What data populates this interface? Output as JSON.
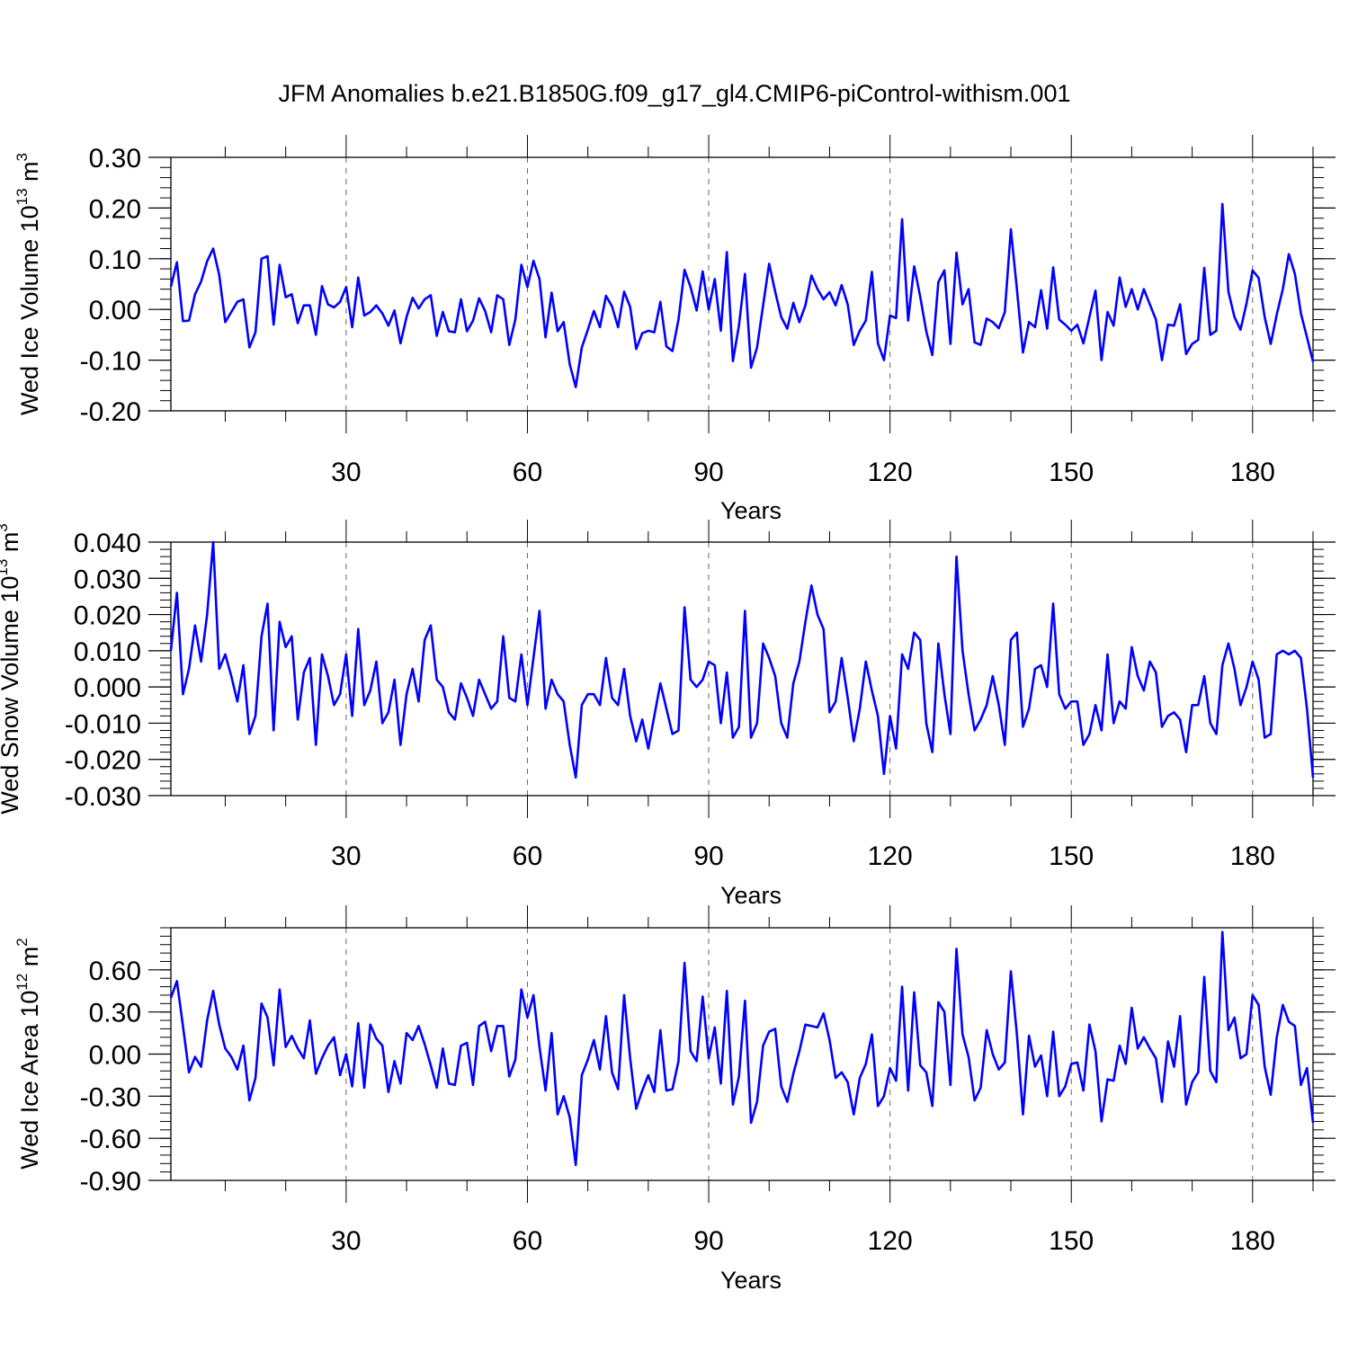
{
  "title": "JFM Anomalies b.e21.B1850G.f09_g17_gl4.CMIP6-piControl-withism.001",
  "colors": {
    "line": "#0000ff",
    "axis": "#000000",
    "grid": "#666666"
  },
  "chart_data": [
    {
      "type": "line",
      "xlabel": "Years",
      "ylabel": {
        "text": "Wed Ice Volume 10",
        "exp": "13",
        "unit": " m",
        "unit_exp": "3"
      },
      "xlim": [
        1,
        190
      ],
      "ylim": [
        -0.2,
        0.3
      ],
      "xticks": [
        30,
        60,
        90,
        120,
        150,
        180
      ],
      "xtick_labels": [
        "30",
        "60",
        "90",
        "120",
        "150",
        "180"
      ],
      "yticks": [
        -0.2,
        -0.1,
        0.0,
        0.1,
        0.2,
        0.3
      ],
      "ytick_labels": [
        "-0.20",
        "-0.10",
        "0.00",
        "0.10",
        "0.20",
        "0.30"
      ],
      "grid": "vertical dashed at major x ticks",
      "series": [
        {
          "x_start": 1,
          "values": [
            0.045,
            0.093,
            -0.023,
            -0.022,
            0.03,
            0.055,
            0.095,
            0.12,
            0.068,
            -0.025,
            -0.005,
            0.015,
            0.02,
            -0.075,
            -0.045,
            0.1,
            0.105,
            -0.03,
            0.088,
            0.024,
            0.03,
            -0.027,
            0.008,
            0.008,
            -0.05,
            0.046,
            0.01,
            0.004,
            0.015,
            0.044,
            -0.035,
            0.063,
            -0.012,
            -0.005,
            0.008,
            -0.008,
            -0.032,
            -0.002,
            -0.067,
            -0.015,
            0.023,
            0.002,
            0.02,
            0.028,
            -0.052,
            -0.005,
            -0.043,
            -0.045,
            0.02,
            -0.043,
            -0.022,
            0.022,
            -0.003,
            -0.045,
            0.028,
            0.02,
            -0.07,
            -0.02,
            0.088,
            0.044,
            0.096,
            0.06,
            -0.055,
            0.033,
            -0.043,
            -0.025,
            -0.108,
            -0.153,
            -0.075,
            -0.04,
            -0.003,
            -0.035,
            0.027,
            0.006,
            -0.035,
            0.035,
            0.005,
            -0.078,
            -0.047,
            -0.042,
            -0.045,
            0.015,
            -0.073,
            -0.082,
            -0.02,
            0.078,
            0.044,
            -0.002,
            0.075,
            0.0,
            0.06,
            -0.042,
            0.113,
            -0.102,
            -0.032,
            0.07,
            -0.115,
            -0.075,
            0.008,
            0.09,
            0.035,
            -0.015,
            -0.038,
            0.013,
            -0.025,
            0.008,
            0.067,
            0.04,
            0.02,
            0.034,
            0.008,
            0.048,
            0.01,
            -0.07,
            -0.042,
            -0.022,
            0.074,
            -0.067,
            -0.1,
            -0.012,
            -0.017,
            0.178,
            -0.022,
            0.085,
            0.025,
            -0.043,
            -0.09,
            0.054,
            0.077,
            -0.068,
            0.112,
            0.01,
            0.04,
            -0.065,
            -0.07,
            -0.018,
            -0.025,
            -0.037,
            -0.005,
            0.158,
            0.04,
            -0.085,
            -0.025,
            -0.035,
            0.038,
            -0.038,
            0.083,
            -0.02,
            -0.03,
            -0.042,
            -0.03,
            -0.067,
            -0.015,
            0.037,
            -0.1,
            -0.005,
            -0.032,
            0.063,
            0.005,
            0.04,
            0.0,
            0.04,
            0.01,
            -0.02,
            -0.1,
            -0.03,
            -0.032,
            0.01,
            -0.088,
            -0.068,
            -0.06,
            0.082,
            -0.05,
            -0.042,
            0.208,
            0.035,
            -0.015,
            -0.04,
            0.012,
            0.077,
            0.062,
            -0.015,
            -0.068,
            -0.01,
            0.04,
            0.109,
            0.07,
            -0.008,
            -0.055,
            -0.103
          ]
        }
      ]
    },
    {
      "type": "line",
      "xlabel": "Years",
      "ylabel": {
        "text": "Wed Snow Volume 10",
        "exp": "13",
        "unit": " m",
        "unit_exp": "3"
      },
      "xlim": [
        1,
        190
      ],
      "ylim": [
        -0.03,
        0.04
      ],
      "xticks": [
        30,
        60,
        90,
        120,
        150,
        180
      ],
      "xtick_labels": [
        "30",
        "60",
        "90",
        "120",
        "150",
        "180"
      ],
      "yticks": [
        -0.03,
        -0.02,
        -0.01,
        0.0,
        0.01,
        0.02,
        0.03,
        0.04
      ],
      "ytick_labels": [
        "-0.030",
        "-0.020",
        "-0.010",
        "0.000",
        "0.010",
        "0.020",
        "0.030",
        "0.040"
      ],
      "grid": "vertical dashed at major x ticks",
      "series": [
        {
          "x_start": 1,
          "values": [
            0.01,
            0.026,
            -0.002,
            0.005,
            0.017,
            0.007,
            0.02,
            0.04,
            0.005,
            0.009,
            0.003,
            -0.004,
            0.006,
            -0.013,
            -0.008,
            0.014,
            0.023,
            -0.012,
            0.018,
            0.011,
            0.014,
            -0.009,
            0.004,
            0.008,
            -0.016,
            0.009,
            0.003,
            -0.005,
            -0.002,
            0.009,
            -0.008,
            0.016,
            -0.005,
            -0.001,
            0.007,
            -0.01,
            -0.007,
            0.002,
            -0.016,
            -0.002,
            0.005,
            -0.004,
            0.013,
            0.017,
            0.002,
            0.0,
            -0.007,
            -0.009,
            0.001,
            -0.003,
            -0.008,
            0.002,
            -0.002,
            -0.006,
            -0.004,
            0.014,
            -0.003,
            -0.004,
            0.009,
            -0.005,
            0.008,
            0.021,
            -0.006,
            0.002,
            -0.002,
            -0.004,
            -0.016,
            -0.025,
            -0.005,
            -0.002,
            -0.002,
            -0.005,
            0.008,
            -0.003,
            -0.005,
            0.005,
            -0.008,
            -0.015,
            -0.009,
            -0.017,
            -0.008,
            0.001,
            -0.006,
            -0.013,
            -0.012,
            0.022,
            0.002,
            0.0,
            0.002,
            0.007,
            0.006,
            -0.01,
            0.004,
            -0.014,
            -0.011,
            0.021,
            -0.014,
            -0.01,
            0.012,
            0.008,
            0.003,
            -0.01,
            -0.014,
            0.001,
            0.007,
            0.018,
            0.028,
            0.02,
            0.016,
            -0.007,
            -0.004,
            0.008,
            -0.003,
            -0.015,
            -0.006,
            0.007,
            -0.001,
            -0.008,
            -0.024,
            -0.008,
            -0.017,
            0.009,
            0.005,
            0.015,
            0.013,
            -0.01,
            -0.018,
            0.012,
            -0.002,
            -0.013,
            0.036,
            0.01,
            -0.002,
            -0.012,
            -0.009,
            -0.005,
            0.003,
            -0.005,
            -0.016,
            0.013,
            0.015,
            -0.011,
            -0.006,
            0.005,
            0.006,
            0.0,
            0.023,
            -0.002,
            -0.006,
            -0.004,
            -0.004,
            -0.016,
            -0.013,
            -0.005,
            -0.012,
            0.009,
            -0.01,
            -0.004,
            -0.006,
            0.011,
            0.003,
            -0.001,
            0.007,
            0.004,
            -0.011,
            -0.008,
            -0.007,
            -0.009,
            -0.018,
            -0.005,
            -0.005,
            0.003,
            -0.01,
            -0.013,
            0.006,
            0.012,
            0.005,
            -0.005,
            0.0,
            0.007,
            0.002,
            -0.014,
            -0.013,
            0.009,
            0.01,
            0.009,
            0.01,
            0.008,
            -0.006,
            -0.025
          ]
        }
      ]
    },
    {
      "type": "line",
      "xlabel": "Years",
      "ylabel": {
        "text": "Wed Ice Area 10",
        "exp": "12",
        "unit": " m",
        "unit_exp": "2"
      },
      "xlim": [
        1,
        190
      ],
      "ylim": [
        -0.9,
        0.9
      ],
      "xticks": [
        30,
        60,
        90,
        120,
        150,
        180
      ],
      "xtick_labels": [
        "30",
        "60",
        "90",
        "120",
        "150",
        "180"
      ],
      "yticks": [
        -0.9,
        -0.6,
        -0.3,
        0.0,
        0.3,
        0.6
      ],
      "ytick_labels": [
        "-0.90",
        "-0.60",
        "-0.30",
        "0.00",
        "0.30",
        "0.60"
      ],
      "grid": "vertical dashed at major x ticks",
      "series": [
        {
          "x_start": 1,
          "values": [
            0.4,
            0.52,
            0.2,
            -0.13,
            -0.02,
            -0.09,
            0.24,
            0.45,
            0.21,
            0.04,
            -0.02,
            -0.11,
            0.06,
            -0.33,
            -0.17,
            0.36,
            0.26,
            -0.08,
            0.46,
            0.05,
            0.13,
            0.04,
            -0.03,
            0.24,
            -0.14,
            -0.03,
            0.06,
            0.12,
            -0.15,
            0.0,
            -0.23,
            0.22,
            -0.24,
            0.21,
            0.11,
            0.06,
            -0.27,
            -0.05,
            -0.21,
            0.15,
            0.1,
            0.2,
            0.07,
            -0.08,
            -0.24,
            0.04,
            -0.21,
            -0.22,
            0.06,
            0.08,
            -0.22,
            0.2,
            0.23,
            0.02,
            0.2,
            0.2,
            -0.16,
            -0.04,
            0.46,
            0.26,
            0.42,
            0.05,
            -0.26,
            0.15,
            -0.43,
            -0.3,
            -0.45,
            -0.79,
            -0.15,
            -0.04,
            0.1,
            -0.11,
            0.27,
            -0.13,
            -0.25,
            0.42,
            -0.03,
            -0.39,
            -0.26,
            -0.15,
            -0.27,
            0.17,
            -0.26,
            -0.25,
            -0.05,
            0.65,
            0.02,
            -0.05,
            0.41,
            -0.03,
            0.19,
            -0.21,
            0.45,
            -0.36,
            -0.16,
            0.38,
            -0.49,
            -0.34,
            0.06,
            0.16,
            0.18,
            -0.23,
            -0.34,
            -0.14,
            0.02,
            0.21,
            0.2,
            0.19,
            0.29,
            0.1,
            -0.17,
            -0.13,
            -0.2,
            -0.43,
            -0.17,
            -0.07,
            0.14,
            -0.37,
            -0.3,
            -0.1,
            -0.19,
            0.48,
            -0.26,
            0.44,
            -0.08,
            -0.13,
            -0.37,
            0.37,
            0.3,
            -0.22,
            0.75,
            0.14,
            -0.02,
            -0.33,
            -0.24,
            0.17,
            0.0,
            -0.11,
            -0.06,
            0.59,
            0.14,
            -0.43,
            0.13,
            -0.09,
            -0.01,
            -0.3,
            0.16,
            -0.3,
            -0.23,
            -0.07,
            -0.06,
            -0.26,
            0.21,
            0.02,
            -0.48,
            -0.18,
            -0.19,
            0.06,
            -0.07,
            0.33,
            0.04,
            0.12,
            0.04,
            -0.03,
            -0.34,
            0.09,
            -0.09,
            0.27,
            -0.36,
            -0.2,
            -0.13,
            0.55,
            -0.12,
            -0.2,
            0.87,
            0.17,
            0.26,
            -0.03,
            0.0,
            0.42,
            0.35,
            -0.09,
            -0.29,
            0.12,
            0.35,
            0.23,
            0.2,
            -0.22,
            -0.1,
            -0.49
          ]
        }
      ]
    }
  ]
}
